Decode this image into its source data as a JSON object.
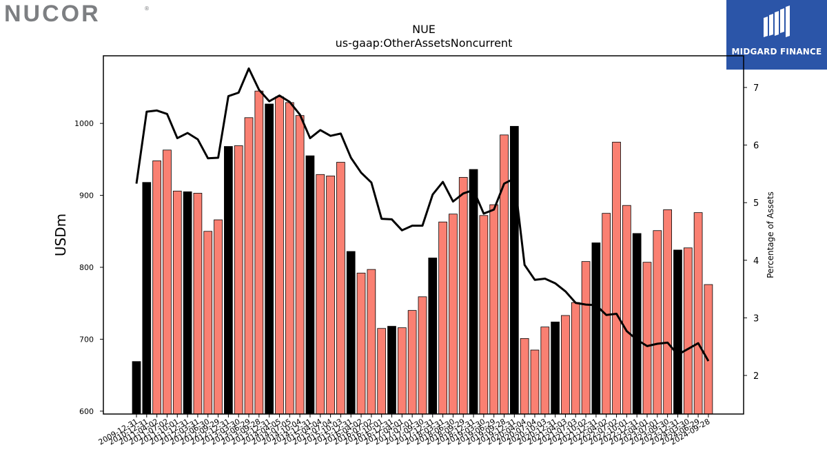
{
  "header": {
    "company_logo": "NUCOR",
    "brand_name": "MIDGARD FINANCE",
    "brand_color": "#2b55a8"
  },
  "chart_data": {
    "type": "bar",
    "title": "NUE",
    "subtitle": "us-gaap:OtherAssetsNoncurrent",
    "ylabel": "USDm",
    "y2label": "Percentage of Assets",
    "ylim": [
      596,
      1094
    ],
    "y2lim": [
      1.33,
      7.55
    ],
    "yticks": [
      600,
      700,
      800,
      900,
      1000
    ],
    "y2ticks": [
      2,
      3,
      4,
      5,
      6,
      7
    ],
    "colors": {
      "annual_bar": "#000000",
      "quarter_bar": "#fa8072",
      "line": "#000000"
    },
    "categories": [
      "2009-12-31",
      "2010-12-31",
      "2011-04-02",
      "2011-07-02",
      "2011-10-01",
      "2011-12-31",
      "2012-03-31",
      "2012-06-30",
      "2012-09-29",
      "2012-12-31",
      "2013-03-30",
      "2013-06-29",
      "2013-09-28",
      "2013-12-31",
      "2014-04-05",
      "2014-07-05",
      "2014-10-04",
      "2014-12-31",
      "2015-04-04",
      "2015-07-04",
      "2015-10-03",
      "2015-12-31",
      "2016-04-02",
      "2016-07-02",
      "2016-10-01",
      "2016-12-31",
      "2017-04-01",
      "2017-07-01",
      "2017-09-30",
      "2017-12-31",
      "2018-03-31",
      "2018-06-30",
      "2018-09-29",
      "2018-12-31",
      "2019-03-30",
      "2019-06-29",
      "2019-09-28",
      "2019-12-31",
      "2020-04-04",
      "2020-07-04",
      "2020-10-03",
      "2020-12-31",
      "2021-04-03",
      "2021-07-03",
      "2021-10-02",
      "2021-12-31",
      "2022-04-02",
      "2022-07-02",
      "2022-10-01",
      "2022-12-31",
      "2023-04-01",
      "2023-07-01",
      "2023-09-30",
      "2023-12-31",
      "2024-03-30",
      "2024-06-29",
      "2024-09-28"
    ],
    "annual": [
      true,
      true,
      false,
      false,
      false,
      true,
      false,
      false,
      false,
      true,
      false,
      false,
      false,
      true,
      false,
      false,
      false,
      true,
      false,
      false,
      false,
      true,
      false,
      false,
      false,
      true,
      false,
      false,
      false,
      true,
      false,
      false,
      false,
      true,
      false,
      false,
      false,
      true,
      false,
      false,
      false,
      true,
      false,
      false,
      false,
      true,
      false,
      false,
      false,
      true,
      false,
      false,
      false,
      true,
      false,
      false,
      false
    ],
    "series": [
      {
        "values": [
          669,
          918,
          948,
          963,
          906,
          905,
          903,
          850,
          866,
          968,
          969,
          1008,
          1045,
          1027,
          1037,
          1029,
          1011,
          955,
          929,
          927,
          946,
          822,
          792,
          797,
          715,
          718,
          716,
          740,
          759,
          813,
          863,
          874,
          925,
          936,
          872,
          887,
          984,
          996,
          701,
          685,
          717,
          724,
          733,
          751,
          808,
          834,
          875,
          974,
          886,
          847,
          807,
          851,
          880,
          824,
          827,
          876,
          776
        ]
      },
      {
        "axis": "right",
        "kind": "line",
        "values": [
          5.33,
          6.58,
          6.6,
          6.54,
          6.12,
          6.21,
          6.1,
          5.77,
          5.78,
          6.85,
          6.91,
          7.33,
          6.96,
          6.76,
          6.86,
          6.75,
          6.53,
          6.12,
          6.26,
          6.16,
          6.2,
          5.78,
          5.52,
          5.35,
          4.72,
          4.71,
          4.52,
          4.6,
          4.6,
          5.14,
          5.36,
          5.02,
          5.16,
          5.22,
          4.81,
          4.88,
          5.33,
          5.42,
          3.92,
          3.66,
          3.68,
          3.6,
          3.46,
          3.26,
          3.23,
          3.22,
          3.05,
          3.07,
          2.77,
          2.62,
          2.51,
          2.55,
          2.57,
          2.36,
          2.46,
          2.56,
          2.25
        ]
      }
    ]
  }
}
